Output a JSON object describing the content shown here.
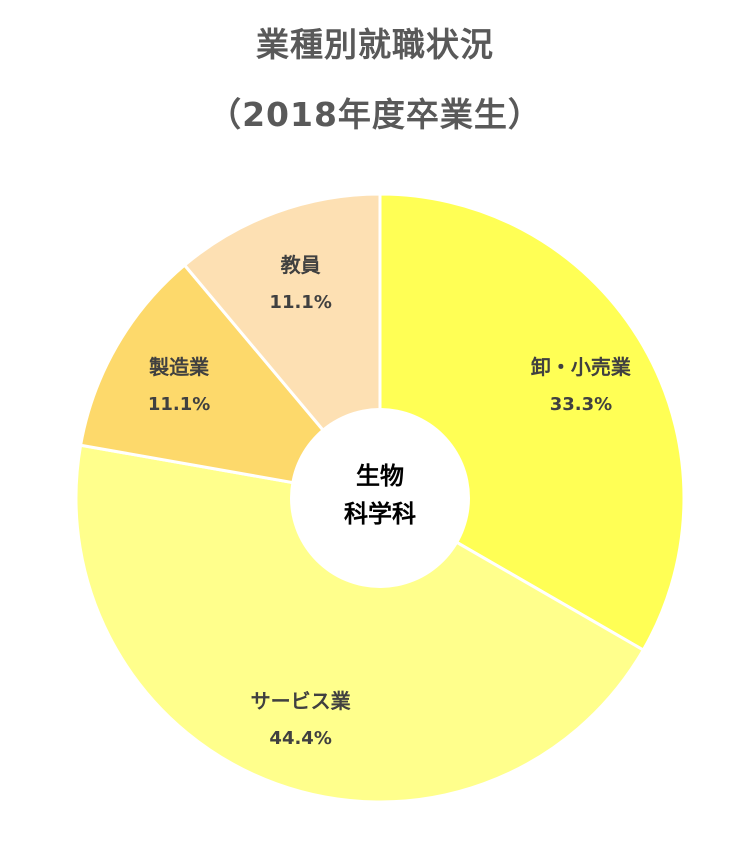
{
  "chart_data": {
    "type": "pie",
    "title": "業種別就職状況",
    "subtitle": "（2018年度卒業生）",
    "center_label": [
      "生物",
      "科学科"
    ],
    "slices": [
      {
        "label": "卸・小売業",
        "value": 33.3,
        "value_label": "33.3%",
        "color": "#ffff55"
      },
      {
        "label": "サービス業",
        "value": 44.4,
        "value_label": "44.4%",
        "color": "#ffff8c"
      },
      {
        "label": "製造業",
        "value": 11.1,
        "value_label": "11.1%",
        "color": "#fdd96b"
      },
      {
        "label": "教員",
        "value": 11.1,
        "value_label": "11.1%",
        "color": "#fde0b3"
      }
    ]
  }
}
